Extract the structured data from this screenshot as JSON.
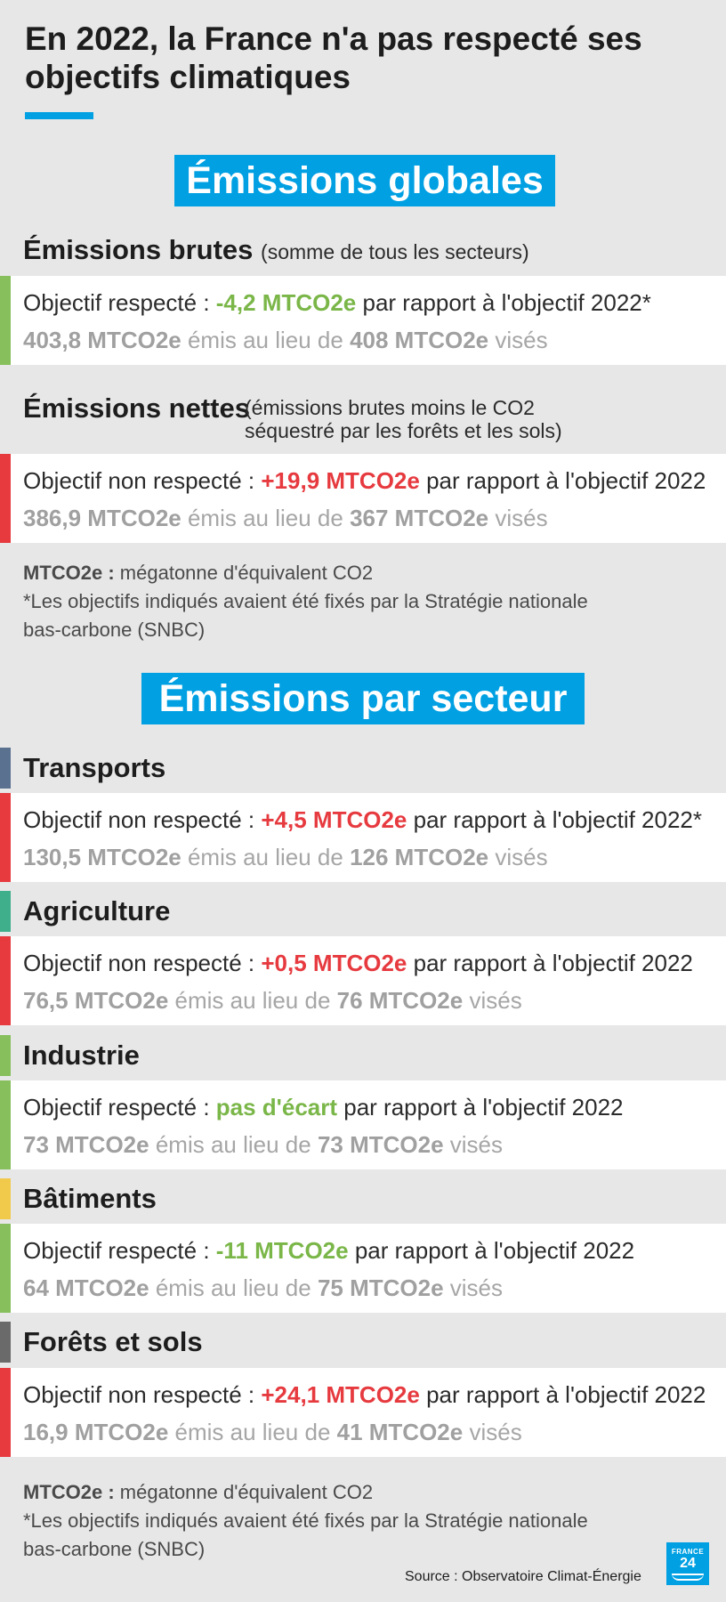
{
  "title": "En 2022, la France n'a pas respecté ses objectifs climatiques",
  "colors": {
    "accent": "#00a0e3",
    "respected": "#7ab648",
    "not_respected": "#e63a3f",
    "transports": "#5b7190",
    "agriculture": "#3fae8b",
    "batiments": "#f1c94b",
    "forets": "#6a6a6a"
  },
  "global": {
    "banner": "Émissions globales",
    "brutes": {
      "label": "Émissions brutes",
      "note": "(somme de tous les secteurs)",
      "prefix": "Objectif respecté : ",
      "delta": "-4,2 MTCO2e",
      "suffix": " par rapport à l'objectif 2022*",
      "emitted": "403,8 MTCO2e",
      "mid": " émis au lieu de ",
      "target": "408 MTCO2e",
      "end": " visés"
    },
    "nettes": {
      "label": "Émissions nettes",
      "note1": "(émissions brutes moins le CO2",
      "note2": "séquestré par les forêts et les sols)",
      "prefix": "Objectif non respecté : ",
      "delta": "+19,9 MTCO2e",
      "suffix": " par rapport à l'objectif 2022",
      "emitted": "386,9 MTCO2e",
      "mid": " émis au lieu de ",
      "target": "367 MTCO2e",
      "end": " visés"
    },
    "footnote": {
      "unit_label": "MTCO2e :",
      "unit_def": " mégatonne d'équivalent CO2",
      "note1": "*Les objectifs indiqués avaient été fixés par la Stratégie nationale",
      "note2": "bas-carbone (SNBC)"
    }
  },
  "sectors": {
    "banner": "Émissions par secteur",
    "transports": {
      "label": "Transports",
      "prefix": "Objectif non respecté : ",
      "delta": "+4,5 MTCO2e",
      "suffix": " par rapport à l'objectif 2022*",
      "emitted": "130,5 MTCO2e",
      "mid": " émis au lieu de ",
      "target": "126 MTCO2e",
      "end": " visés"
    },
    "agriculture": {
      "label": "Agriculture",
      "prefix": "Objectif non respecté : ",
      "delta": "+0,5 MTCO2e",
      "suffix": " par rapport à l'objectif 2022",
      "emitted": "76,5 MTCO2e",
      "mid": " émis au lieu de ",
      "target": "76 MTCO2e",
      "end": " visés"
    },
    "industrie": {
      "label": "Industrie",
      "prefix": "Objectif respecté : ",
      "delta": "pas d'écart",
      "suffix": " par rapport à l'objectif 2022",
      "emitted": "73 MTCO2e",
      "mid": " émis au lieu de ",
      "target": "73 MTCO2e",
      "end": " visés"
    },
    "batiments": {
      "label": "Bâtiments",
      "prefix": "Objectif respecté : ",
      "delta": "-11 MTCO2e",
      "suffix": " par rapport à l'objectif 2022",
      "emitted": "64 MTCO2e",
      "mid": " émis au lieu de ",
      "target": "75 MTCO2e",
      "end": " visés"
    },
    "forets": {
      "label": "Forêts et sols",
      "prefix": "Objectif non respecté : ",
      "delta": "+24,1 MTCO2e",
      "suffix": " par rapport à l'objectif 2022",
      "emitted": "16,9 MTCO2e",
      "mid": " émis au lieu de ",
      "target": "41 MTCO2e",
      "end": " visés"
    },
    "footnote": {
      "unit_label": "MTCO2e :",
      "unit_def": " mégatonne d'équivalent CO2",
      "note1": "*Les objectifs indiqués avaient été fixés par la Stratégie nationale",
      "note2": "bas-carbone (SNBC)"
    }
  },
  "source": "Source : Observatoire Climat-Énergie",
  "logo": {
    "line1": "FRANCE",
    "line2": "24"
  }
}
